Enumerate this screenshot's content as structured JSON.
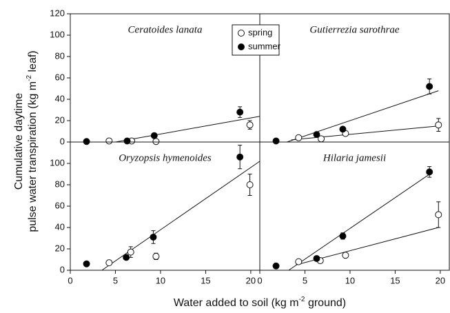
{
  "chart_data": {
    "type": "scatter",
    "xlabel": [
      "Water added to soil (kg m",
      "-2",
      " ground)"
    ],
    "ylabel": {
      "line1": "Cumulative daytime",
      "line2": [
        "pulse water transpiration (kg m",
        "-2",
        " leaf)"
      ]
    },
    "xlim": [
      0,
      21
    ],
    "xticks": [
      0,
      5,
      10,
      15,
      20
    ],
    "series": [
      {
        "name": "spring",
        "color": "#ffffff"
      },
      {
        "name": "summer",
        "color": "#000000"
      }
    ],
    "panels": [
      {
        "title": "Ceratoides lanata",
        "ylim": [
          0,
          120
        ],
        "yticks": [
          0,
          20,
          40,
          60,
          80,
          100,
          120
        ],
        "series": [
          {
            "x": [
              4.3,
              6.8,
              9.5,
              19.9
            ],
            "y": [
              1,
              1,
              0.5,
              16
            ],
            "error": [
              null,
              null,
              null,
              4
            ]
          },
          {
            "x": [
              1.8,
              6.3,
              9.3,
              18.8
            ],
            "y": [
              0.5,
              1,
              6,
              28
            ],
            "error": [
              null,
              null,
              null,
              5
            ]
          }
        ],
        "fits": [
          {
            "x": [
              5,
              21
            ],
            "y": [
              0,
              24
            ]
          }
        ]
      },
      {
        "title": "Gutierrezia sarothrae",
        "ylim": [
          0,
          120
        ],
        "series": [
          {
            "x": [
              4.3,
              6.8,
              9.5,
              19.8
            ],
            "y": [
              4,
              3,
              8,
              16
            ],
            "error": [
              null,
              null,
              null,
              6
            ]
          },
          {
            "x": [
              1.8,
              6.3,
              9.2,
              18.8
            ],
            "y": [
              1,
              7,
              12,
              52
            ],
            "error": [
              null,
              null,
              null,
              7
            ]
          }
        ],
        "fits": [
          {
            "x": [
              3.5,
              19.8
            ],
            "y": [
              2,
              15
            ]
          },
          {
            "x": [
              3,
              19.8
            ],
            "y": [
              0,
              48
            ]
          }
        ]
      },
      {
        "title": "Oryzopsis hymenoides",
        "ylim": [
          0,
          120
        ],
        "yticks": [
          0,
          20,
          40,
          60,
          80,
          100
        ],
        "series": [
          {
            "x": [
              4.3,
              6.7,
              9.5,
              19.9
            ],
            "y": [
              7,
              17,
              13,
              80
            ],
            "error": [
              null,
              5,
              3,
              10
            ]
          },
          {
            "x": [
              1.8,
              6.2,
              9.2,
              18.8
            ],
            "y": [
              6,
              12,
              31,
              106
            ],
            "error": [
              null,
              null,
              6,
              11
            ]
          }
        ],
        "fits": [
          {
            "x": [
              3.5,
              21
            ],
            "y": [
              0,
              102
            ]
          }
        ]
      },
      {
        "title": "Hilaria jamesii",
        "ylim": [
          0,
          120
        ],
        "series": [
          {
            "x": [
              4.3,
              6.7,
              9.5,
              19.8
            ],
            "y": [
              8,
              9,
              14,
              52
            ],
            "error": [
              null,
              null,
              2,
              12
            ]
          },
          {
            "x": [
              1.8,
              6.3,
              9.2,
              18.8
            ],
            "y": [
              4,
              11,
              32,
              92
            ],
            "error": [
              null,
              null,
              3,
              5
            ]
          }
        ],
        "fits": [
          {
            "x": [
              4,
              19.8
            ],
            "y": [
              5,
              40
            ]
          },
          {
            "x": [
              3.2,
              19
            ],
            "y": [
              0,
              91
            ]
          }
        ]
      }
    ]
  }
}
